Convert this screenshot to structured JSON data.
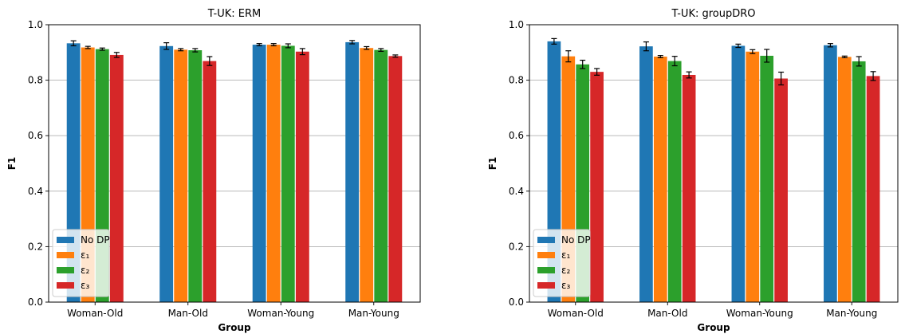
{
  "chart_data": [
    {
      "type": "bar",
      "title": "T-UK: ERM",
      "xlabel": "Group",
      "ylabel": "F1",
      "ylim": [
        0,
        1.0
      ],
      "yticks": [
        "0.0",
        "0.2",
        "0.4",
        "0.6",
        "0.8",
        "1.0"
      ],
      "grid": "y",
      "legend_position": "lower-left",
      "categories": [
        "Woman-Old",
        "Man-Old",
        "Woman-Young",
        "Man-Young"
      ],
      "series": [
        {
          "name": "No DP",
          "values": [
            0.933,
            0.923,
            0.928,
            0.937
          ],
          "errors": [
            0.009,
            0.012,
            0.004,
            0.006
          ]
        },
        {
          "name": "ε1",
          "values": [
            0.918,
            0.91,
            0.928,
            0.916
          ],
          "errors": [
            0.004,
            0.004,
            0.004,
            0.005
          ]
        },
        {
          "name": "ε2",
          "values": [
            0.912,
            0.908,
            0.924,
            0.909
          ],
          "errors": [
            0.004,
            0.006,
            0.007,
            0.005
          ]
        },
        {
          "name": "ε3",
          "values": [
            0.891,
            0.869,
            0.903,
            0.887
          ],
          "errors": [
            0.009,
            0.016,
            0.011,
            0.004
          ]
        }
      ]
    },
    {
      "type": "bar",
      "title": "T-UK: groupDRO",
      "xlabel": "Group",
      "ylabel": "F1",
      "ylim": [
        0,
        1.0
      ],
      "yticks": [
        "0.0",
        "0.2",
        "0.4",
        "0.6",
        "0.8",
        "1.0"
      ],
      "grid": "y",
      "legend_position": "lower-left",
      "categories": [
        "Woman-Old",
        "Man-Old",
        "Woman-Young",
        "Man-Young"
      ],
      "series": [
        {
          "name": "No DP",
          "values": [
            0.94,
            0.922,
            0.924,
            0.926
          ],
          "errors": [
            0.01,
            0.016,
            0.006,
            0.006
          ]
        },
        {
          "name": "ε1",
          "values": [
            0.886,
            0.885,
            0.903,
            0.884
          ],
          "errors": [
            0.02,
            0.004,
            0.007,
            0.003
          ]
        },
        {
          "name": "ε2",
          "values": [
            0.857,
            0.869,
            0.888,
            0.868
          ],
          "errors": [
            0.015,
            0.017,
            0.023,
            0.017
          ]
        },
        {
          "name": "ε3",
          "values": [
            0.83,
            0.819,
            0.806,
            0.815
          ],
          "errors": [
            0.012,
            0.011,
            0.023,
            0.016
          ]
        }
      ]
    }
  ],
  "colors": {
    "No DP": "#1f77b4",
    "ε1": "#ff7f0e",
    "ε2": "#2ca02c",
    "ε3": "#d62728"
  }
}
